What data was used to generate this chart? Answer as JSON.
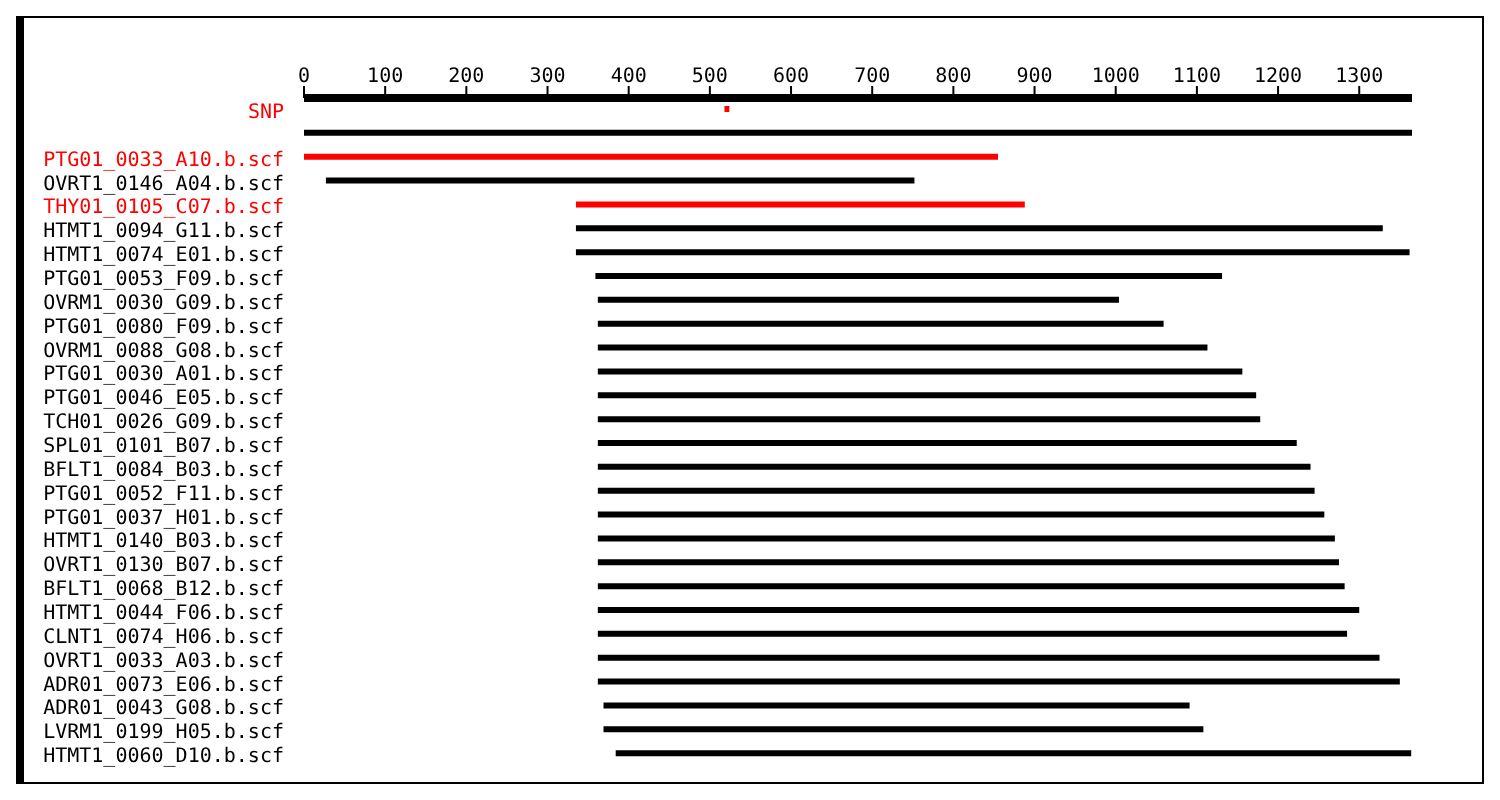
{
  "chart_data": {
    "type": "bar",
    "orientation": "horizontal",
    "categories": [
      "SNP",
      null,
      "PTG01_0033_A10.b.scf",
      "OVRT1_0146_A04.b.scf",
      "THY01_0105_C07.b.scf",
      "HTMT1_0094_G11.b.scf",
      "HTMT1_0074_E01.b.scf",
      "PTG01_0053_F09.b.scf",
      "OVRM1_0030_G09.b.scf",
      "PTG01_0080_F09.b.scf",
      "OVRM1_0088_G08.b.scf",
      "PTG01_0030_A01.b.scf",
      "PTG01_0046_E05.b.scf",
      "TCH01_0026_G09.b.scf",
      "SPL01_0101_B07.b.scf",
      "BFLT1_0084_B03.b.scf",
      "PTG01_0052_F11.b.scf",
      "PTG01_0037_H01.b.scf",
      "HTMT1_0140_B03.b.scf",
      "OVRT1_0130_B07.b.scf",
      "BFLT1_0068_B12.b.scf",
      "HTMT1_0044_F06.b.scf",
      "CLNT1_0074_H06.b.scf",
      "OVRT1_0033_A03.b.scf",
      "ADR01_0073_E06.b.scf",
      "ADR01_0043_G08.b.scf",
      "LVRM1_0199_H05.b.scf",
      "HTMT1_0060_D10.b.scf"
    ],
    "base": [
      518,
      0,
      0,
      27,
      335,
      335,
      335,
      359,
      362,
      362,
      362,
      362,
      362,
      362,
      362,
      362,
      362,
      362,
      362,
      362,
      362,
      362,
      362,
      362,
      362,
      369,
      369,
      384
    ],
    "values": [
      6,
      1367,
      855,
      725,
      553,
      994,
      1027,
      772,
      642,
      697,
      751,
      794,
      811,
      816,
      861,
      878,
      883,
      895,
      908,
      913,
      920,
      938,
      923,
      963,
      988,
      722,
      739,
      980
    ],
    "colors": [
      "#ff0000",
      "#000000",
      "#ff0000",
      "#000000",
      "#ff0000",
      "#000000",
      "#000000",
      "#000000",
      "#000000",
      "#000000",
      "#000000",
      "#000000",
      "#000000",
      "#000000",
      "#000000",
      "#000000",
      "#000000",
      "#000000",
      "#000000",
      "#000000",
      "#000000",
      "#000000",
      "#000000",
      "#000000",
      "#000000",
      "#000000",
      "#000000",
      "#000000"
    ],
    "xlim": [
      0,
      1365
    ],
    "xticks": [
      0,
      100,
      200,
      300,
      400,
      500,
      600,
      700,
      800,
      900,
      1000,
      1100,
      1200,
      1300
    ],
    "grid": false,
    "legend": false
  }
}
